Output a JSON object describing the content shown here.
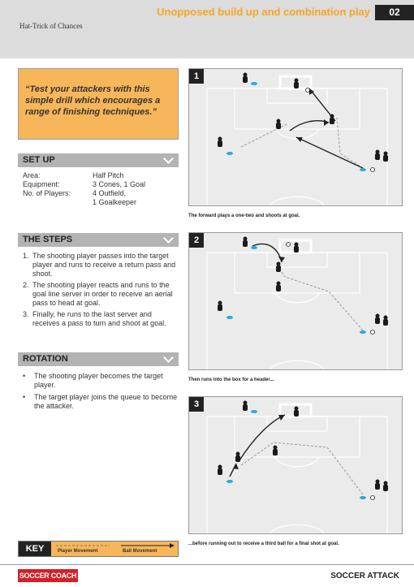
{
  "header": {
    "title": "Unopposed build up and combination play",
    "page_number": "02",
    "subtitle": "Hat-Trick of Chances"
  },
  "quote": "“Test your attackers with this simple drill which encourages a range of finishing techniques.”",
  "setup": {
    "heading": "SET UP",
    "rows": [
      {
        "key": "Area:",
        "value": "Half Pitch"
      },
      {
        "key": "Equipment:",
        "value": "3 Cones, 1 Goal"
      },
      {
        "key": "No. of Players:",
        "value": "4 Outfield,"
      },
      {
        "key": "",
        "value": "1 Goalkeeper"
      }
    ]
  },
  "steps": {
    "heading": "THE STEPS",
    "items": [
      "The shooting player passes into the target player and runs to receive a return pass and shoot.",
      "The shooting player reacts and runs to the goal line server in order to receive an aerial pass to head at goal.",
      "Finally, he runs to the last server and receives a pass to turn and shoot at goal."
    ]
  },
  "rotation": {
    "heading": "ROTATION",
    "items": [
      "The shooting player becomes the target player.",
      "The target player joins the queue to become the attacker."
    ]
  },
  "diagrams": [
    {
      "number": "1",
      "caption": "The forward plays a one-two and shoots at goal."
    },
    {
      "number": "2",
      "caption": "Then runs into the box for a header..."
    },
    {
      "number": "3",
      "caption": "...before running out to receive a third ball for a final shot at goal."
    }
  ],
  "key": {
    "label": "KEY",
    "player_movement": "Player Movement",
    "ball_movement": "Ball Movement"
  },
  "footer": {
    "logo": "SOCCER COACH",
    "brand": "SOCCER ATTACK"
  },
  "colors": {
    "accent": "#f5a623",
    "quote_bg": "#f8b65a",
    "pitch_bg": "#ebebeb",
    "cone": "#29a8e0",
    "logo_red": "#d32027"
  }
}
